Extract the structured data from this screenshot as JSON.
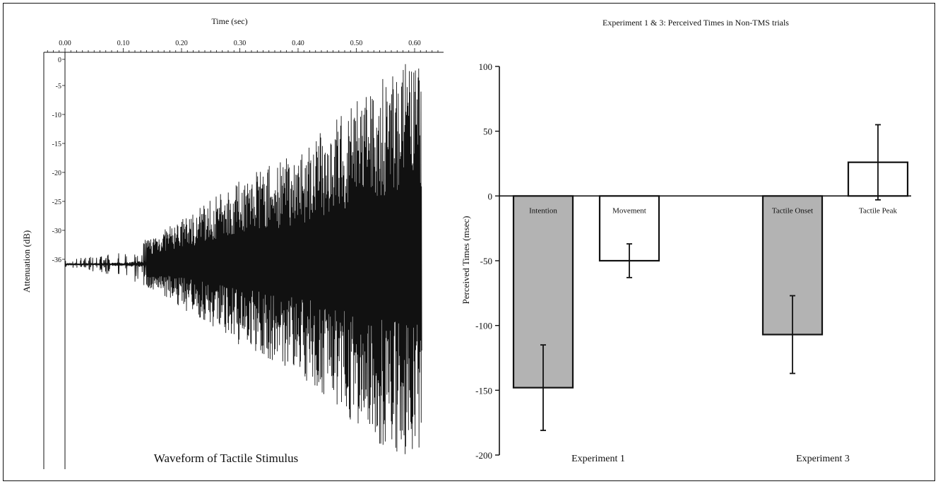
{
  "chart_data": [
    {
      "type": "line",
      "title": "Waveform of Tactile Stimulus",
      "xlabel": "Time (sec)",
      "ylabel": "Attenuation (dB)",
      "xlim": [
        0.0,
        0.65
      ],
      "ylim": [
        -36,
        0
      ],
      "x_ticks": [
        "0.00",
        "0.10",
        "0.20",
        "0.30",
        "0.40",
        "0.50",
        "0.60"
      ],
      "y_ticks": [
        "0",
        "-5",
        "-10",
        "-15",
        "-20",
        "-25",
        "-30",
        "-36"
      ],
      "baseline_db": -36,
      "envelope": [
        {
          "t": 0.0,
          "amp": 0.02
        },
        {
          "t": 0.1,
          "amp": 0.06
        },
        {
          "t": 0.2,
          "amp": 0.22
        },
        {
          "t": 0.3,
          "amp": 0.42
        },
        {
          "t": 0.4,
          "amp": 0.55
        },
        {
          "t": 0.5,
          "amp": 0.82
        },
        {
          "t": 0.58,
          "amp": 1.0
        },
        {
          "t": 0.61,
          "amp": 1.0
        }
      ]
    },
    {
      "type": "bar",
      "title": "Experiment 1 & 3: Perceived Times in Non-TMS trials",
      "ylabel": "Perceived Times (msec)",
      "ylim": [
        -200,
        100
      ],
      "y_ticks": [
        "100",
        "50",
        "0",
        "-50",
        "-100",
        "-150",
        "-200"
      ],
      "groups": [
        "Experiment 1",
        "Experiment 3"
      ],
      "bars": [
        {
          "label": "Intention",
          "group": "Experiment 1",
          "value": -148,
          "err_low": -181,
          "err_high": -115,
          "fill": "#b3b3b3"
        },
        {
          "label": "Movement",
          "group": "Experiment 1",
          "value": -50,
          "err_low": -63,
          "err_high": -37,
          "fill": "#ffffff"
        },
        {
          "label": "Tactile Onset",
          "group": "Experiment 3",
          "value": -107,
          "err_low": -137,
          "err_high": -77,
          "fill": "#b3b3b3"
        },
        {
          "label": "Tactile Peak",
          "group": "Experiment 3",
          "value": 26,
          "err_low": -3,
          "err_high": 55,
          "fill": "#ffffff"
        }
      ]
    }
  ]
}
